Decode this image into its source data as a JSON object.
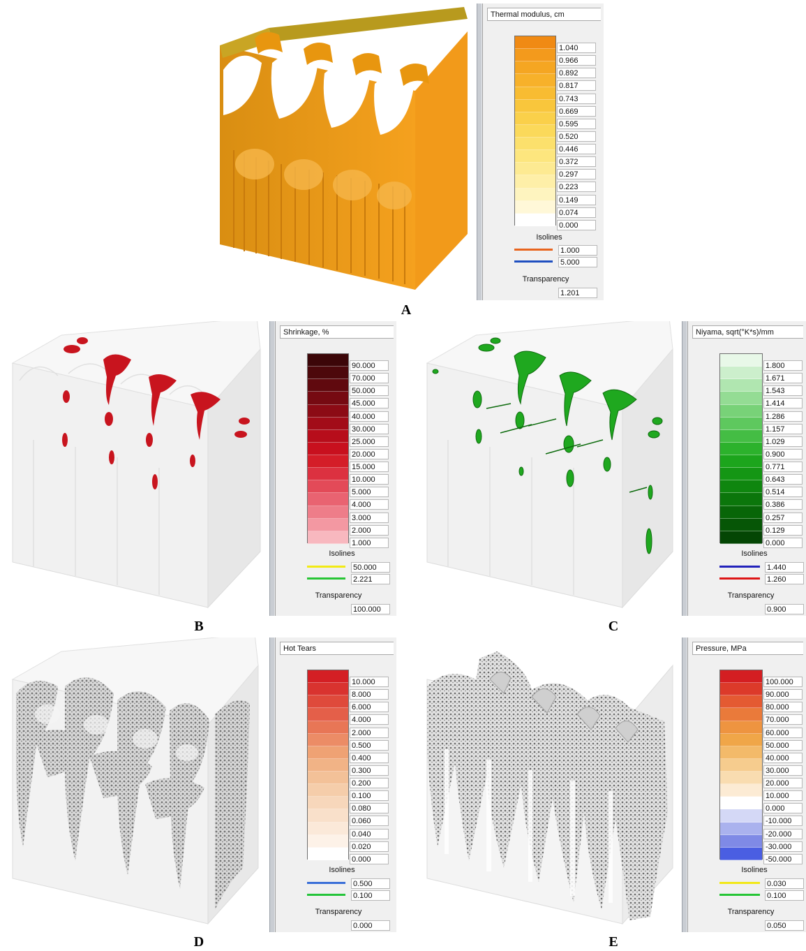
{
  "panels": {
    "A": {
      "letter": "A",
      "legend_title": "Thermal modulus, cm",
      "scale_values": [
        "1.040",
        "0.966",
        "0.892",
        "0.817",
        "0.743",
        "0.669",
        "0.595",
        "0.520",
        "0.446",
        "0.372",
        "0.297",
        "0.223",
        "0.149",
        "0.074",
        "0.000"
      ],
      "scale_colors": [
        "#f08a14",
        "#f39a1c",
        "#f5a622",
        "#f7b12a",
        "#f8bc32",
        "#f9c63c",
        "#fad04a",
        "#fbd95a",
        "#fce06c",
        "#fde67e",
        "#fdea92",
        "#feefa8",
        "#fef4bf",
        "#fff8d8",
        "#ffffff"
      ],
      "isolines_label": "Isolines",
      "isolines": [
        {
          "value": "1.000",
          "color": "#e8641e"
        },
        {
          "value": "5.000",
          "color": "#1f4fc0"
        }
      ],
      "transparency_label": "Transparency",
      "transparency_value": "1.201"
    },
    "B": {
      "letter": "B",
      "legend_title": "Shrinkage, %",
      "scale_values": [
        "90.000",
        "70.000",
        "50.000",
        "45.000",
        "40.000",
        "30.000",
        "25.000",
        "20.000",
        "15.000",
        "10.000",
        "5.000",
        "4.000",
        "3.000",
        "2.000",
        "1.000"
      ],
      "scale_colors": [
        "#3c0608",
        "#4d080b",
        "#60090e",
        "#760a12",
        "#8c0b15",
        "#a20c18",
        "#b70d1b",
        "#c8101e",
        "#d41d28",
        "#dc3140",
        "#e34a58",
        "#e96371",
        "#ee7d89",
        "#f398a2",
        "#f8b8bf"
      ],
      "isolines_label": "Isolines",
      "isolines": [
        {
          "value": "50.000",
          "color": "#f2ea14"
        },
        {
          "value": "2.221",
          "color": "#27c534"
        }
      ],
      "transparency_label": "Transparency",
      "transparency_value": "100.000"
    },
    "C": {
      "letter": "C",
      "legend_title": "Niyama, sqrt(°K*s)/mm",
      "scale_values": [
        "1.800",
        "1.671",
        "1.543",
        "1.414",
        "1.286",
        "1.157",
        "1.029",
        "0.900",
        "0.771",
        "0.643",
        "0.514",
        "0.386",
        "0.257",
        "0.129",
        "0.000"
      ],
      "scale_colors": [
        "#e8f8e8",
        "#ccefcc",
        "#b0e6b0",
        "#94dc94",
        "#78d278",
        "#5ec85e",
        "#44bd44",
        "#2cb22c",
        "#1ca51c",
        "#149614",
        "#0f860f",
        "#0b760b",
        "#086608",
        "#065606",
        "#044604"
      ],
      "isolines_label": "Isolines",
      "isolines": [
        {
          "value": "1.440",
          "color": "#2222bb"
        },
        {
          "value": "1.260",
          "color": "#dd1515"
        }
      ],
      "transparency_label": "Transparency",
      "transparency_value": "0.900"
    },
    "D": {
      "letter": "D",
      "legend_title": "Hot Tears",
      "scale_values": [
        "10.000",
        "8.000",
        "6.000",
        "4.000",
        "2.000",
        "0.500",
        "0.400",
        "0.300",
        "0.200",
        "0.100",
        "0.080",
        "0.060",
        "0.040",
        "0.020",
        "0.000"
      ],
      "scale_colors": [
        "#d41f24",
        "#d9332f",
        "#df4a3b",
        "#e45f49",
        "#e87656",
        "#ec8c66",
        "#efa274",
        "#f1b386",
        "#f3c198",
        "#f5cdaa",
        "#f7d7bb",
        "#f9e0ca",
        "#fbe9d9",
        "#fdf2e8",
        "#ffffff"
      ],
      "isolines_label": "Isolines",
      "isolines": [
        {
          "value": "0.500",
          "color": "#3a6fd8"
        },
        {
          "value": "0.100",
          "color": "#24c43a"
        }
      ],
      "transparency_label": "Transparency",
      "transparency_value": "0.000"
    },
    "E": {
      "letter": "E",
      "legend_title": "Pressure, MPa",
      "scale_values": [
        "100.000",
        "90.000",
        "80.000",
        "70.000",
        "60.000",
        "50.000",
        "40.000",
        "30.000",
        "20.000",
        "10.000",
        "0.000",
        "-10.000",
        "-20.000",
        "-30.000",
        "-50.000"
      ],
      "scale_colors": [
        "#d41e22",
        "#dc3a2a",
        "#e45a32",
        "#ea7a3a",
        "#ee9440",
        "#f0a648",
        "#f3ba6a",
        "#f6cc8e",
        "#f9dcb0",
        "#fcebd4",
        "#ffffff",
        "#d4d8f6",
        "#aab2ee",
        "#7f8ae6",
        "#4a5ee2"
      ],
      "isolines_label": "Isolines",
      "isolines": [
        {
          "value": "0.030",
          "color": "#f2e818"
        },
        {
          "value": "0.100",
          "color": "#25c535"
        }
      ],
      "transparency_label": "Transparency",
      "transparency_value": "0.050"
    }
  }
}
